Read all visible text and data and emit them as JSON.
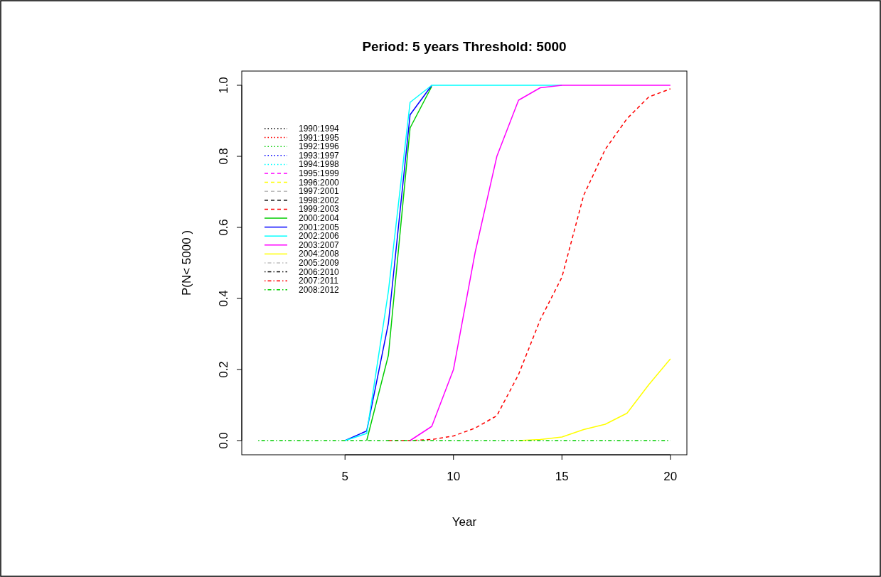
{
  "chart_data": {
    "type": "line",
    "title": "Period: 5 years  Threshold: 5000",
    "xlabel": "Year",
    "ylabel": "P(N< 5000 )",
    "x": [
      1,
      2,
      3,
      4,
      5,
      6,
      7,
      8,
      9,
      10,
      11,
      12,
      13,
      14,
      15,
      16,
      17,
      18,
      19,
      20
    ],
    "xlim": [
      0.24,
      20.76
    ],
    "xticks": [
      5,
      10,
      15,
      20
    ],
    "ylim": [
      -0.04,
      1.04
    ],
    "yticks": [
      {
        "value": 0,
        "label": "0.0"
      },
      0.2,
      0.4,
      0.6,
      0.8,
      {
        "value": 1,
        "label": "1.0"
      }
    ],
    "grid": false,
    "legend": "top left",
    "marker": "none",
    "series": [
      {
        "name": "1990:1994",
        "color": "#000000",
        "line_style": "dotted",
        "values": [
          null,
          null,
          null,
          null,
          null,
          null,
          null,
          null,
          null,
          null,
          null,
          null,
          null,
          null,
          null,
          null,
          null,
          null,
          null,
          null
        ]
      },
      {
        "name": "1991:1995",
        "color": "#ff0000",
        "line_style": "dotted",
        "values": [
          null,
          null,
          null,
          null,
          null,
          null,
          null,
          null,
          null,
          null,
          null,
          null,
          null,
          null,
          null,
          null,
          null,
          null,
          null,
          null
        ]
      },
      {
        "name": "1992:1996",
        "color": "#00cd00",
        "line_style": "dotted",
        "values": [
          null,
          null,
          null,
          null,
          null,
          null,
          null,
          null,
          null,
          null,
          null,
          null,
          null,
          null,
          null,
          null,
          null,
          null,
          null,
          null
        ]
      },
      {
        "name": "1993:1997",
        "color": "#0000ff",
        "line_style": "dotted",
        "values": [
          null,
          null,
          null,
          null,
          null,
          null,
          null,
          null,
          null,
          null,
          null,
          null,
          null,
          null,
          null,
          null,
          null,
          null,
          null,
          null
        ]
      },
      {
        "name": "1994:1998",
        "color": "#00ffff",
        "line_style": "dotted",
        "values": [
          null,
          null,
          null,
          null,
          null,
          null,
          null,
          null,
          null,
          null,
          null,
          null,
          null,
          null,
          null,
          null,
          null,
          null,
          null,
          null
        ]
      },
      {
        "name": "1995:1999",
        "color": "#ff00ff",
        "line_style": "dashed",
        "values": [
          null,
          null,
          null,
          null,
          null,
          null,
          null,
          null,
          null,
          null,
          null,
          null,
          null,
          null,
          null,
          null,
          null,
          null,
          null,
          null
        ]
      },
      {
        "name": "1996:2000",
        "color": "#ffff00",
        "line_style": "dashed",
        "values": [
          null,
          null,
          null,
          null,
          null,
          null,
          null,
          null,
          null,
          null,
          null,
          null,
          null,
          null,
          null,
          null,
          null,
          null,
          null,
          null
        ]
      },
      {
        "name": "1997:2001",
        "color": "#bebebe",
        "line_style": "dashed",
        "values": [
          null,
          null,
          null,
          null,
          null,
          null,
          null,
          null,
          null,
          null,
          null,
          null,
          null,
          null,
          null,
          null,
          null,
          null,
          null,
          null
        ]
      },
      {
        "name": "1998:2002",
        "color": "#000000",
        "line_style": "dashed",
        "values": [
          null,
          null,
          null,
          null,
          null,
          null,
          null,
          null,
          null,
          null,
          null,
          null,
          null,
          null,
          null,
          null,
          null,
          null,
          null,
          null
        ]
      },
      {
        "name": "1999:2003",
        "color": "#ff0000",
        "line_style": "dashed",
        "values": [
          null,
          null,
          null,
          null,
          null,
          null,
          0,
          0,
          0.003,
          0.013,
          0.035,
          0.07,
          0.186,
          0.34,
          0.46,
          0.69,
          0.82,
          0.906,
          0.967,
          0.99
        ]
      },
      {
        "name": "2000:2004",
        "color": "#00cd00",
        "line_style": "solid",
        "values": [
          null,
          null,
          null,
          null,
          null,
          0,
          0.24,
          0.88,
          0.997,
          null,
          null,
          null,
          null,
          null,
          null,
          null,
          null,
          null,
          null,
          null
        ]
      },
      {
        "name": "2001:2005",
        "color": "#0000ff",
        "line_style": "solid",
        "values": [
          null,
          null,
          null,
          null,
          0,
          0.027,
          0.33,
          0.917,
          1,
          null,
          null,
          null,
          null,
          null,
          null,
          null,
          null,
          null,
          null,
          null
        ]
      },
      {
        "name": "2002:2006",
        "color": "#00ffff",
        "line_style": "solid",
        "values": [
          null,
          null,
          null,
          null,
          0,
          0.02,
          0.42,
          0.952,
          1,
          1,
          1,
          1,
          1,
          1,
          1,
          null,
          null,
          null,
          null,
          null
        ]
      },
      {
        "name": "2003:2007",
        "color": "#ff00ff",
        "line_style": "solid",
        "values": [
          null,
          null,
          null,
          null,
          null,
          null,
          null,
          0,
          0.04,
          0.2,
          0.53,
          0.8,
          0.958,
          0.993,
          1,
          1,
          1,
          1,
          1,
          1
        ]
      },
      {
        "name": "2004:2008",
        "color": "#ffff00",
        "line_style": "solid",
        "values": [
          null,
          null,
          null,
          null,
          null,
          null,
          null,
          null,
          null,
          null,
          null,
          null,
          0,
          0.003,
          0.01,
          0.031,
          0.046,
          0.077,
          0.157,
          0.23
        ]
      },
      {
        "name": "2005:2009",
        "color": "#bebebe",
        "line_style": "dotdash",
        "values": [
          null,
          null,
          null,
          null,
          null,
          null,
          null,
          null,
          null,
          null,
          null,
          null,
          null,
          null,
          null,
          null,
          null,
          null,
          null,
          null
        ]
      },
      {
        "name": "2006:2010",
        "color": "#000000",
        "line_style": "dotdash",
        "values": [
          null,
          null,
          null,
          null,
          null,
          null,
          null,
          null,
          null,
          null,
          null,
          null,
          null,
          null,
          null,
          null,
          null,
          null,
          null,
          null
        ]
      },
      {
        "name": "2007:2011",
        "color": "#ff0000",
        "line_style": "dotdash",
        "values": [
          null,
          null,
          null,
          null,
          null,
          null,
          null,
          null,
          null,
          null,
          null,
          null,
          null,
          null,
          null,
          null,
          null,
          null,
          null,
          null
        ]
      },
      {
        "name": "2008:2012",
        "color": "#00cd00",
        "line_style": "dotdash",
        "values": [
          0,
          0,
          0,
          0,
          0,
          0,
          0,
          0,
          0,
          0,
          0,
          0,
          0,
          0,
          0,
          0,
          0,
          0,
          0,
          0
        ]
      }
    ]
  }
}
